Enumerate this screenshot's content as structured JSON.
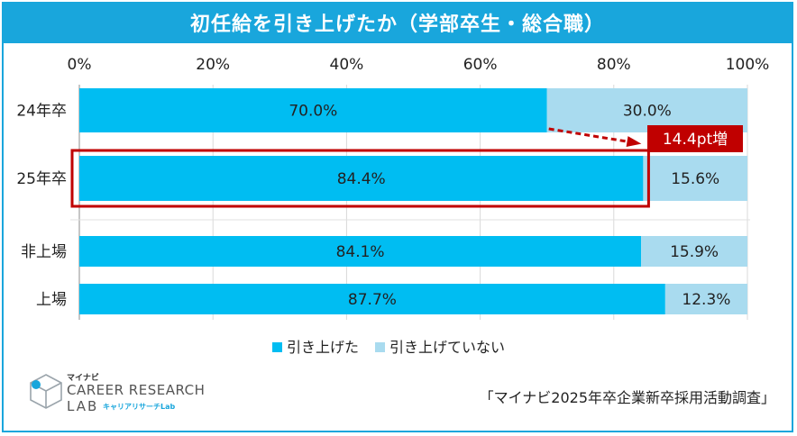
{
  "chart_data": {
    "type": "bar",
    "orientation": "horizontal",
    "stacked": true,
    "title": "初任給を引き上げたか（学部卒生・総合職）",
    "x_ticks": [
      "0%",
      "20%",
      "40%",
      "60%",
      "80%",
      "100%"
    ],
    "xlim": [
      0,
      100
    ],
    "categories": [
      "24年卒",
      "25年卒",
      "非上場",
      "上場"
    ],
    "series": [
      {
        "name": "引き上げた",
        "values": [
          70.0,
          84.4,
          84.1,
          87.7
        ],
        "labels": [
          "70.0%",
          "84.4%",
          "84.1%",
          "87.7%"
        ],
        "color": "#00bdf2"
      },
      {
        "name": "引き上げていない",
        "values": [
          30.0,
          15.6,
          15.9,
          12.3
        ],
        "labels": [
          "30.0%",
          "15.6%",
          "15.9%",
          "12.3%"
        ],
        "color": "#a9dbef"
      }
    ],
    "annotation": {
      "text": "14.4pt増",
      "from_category": "24年卒",
      "to_category": "25年卒",
      "color": "#c00000"
    },
    "highlight_category": "25年卒",
    "legend": [
      "引き上げた",
      "引き上げていない"
    ],
    "legend_position": "bottom"
  },
  "logo": {
    "kana_top": "マイナビ",
    "line1": "CAREER RESEARCH",
    "line2": "LAB",
    "kana_bottom": "キャリアリサーチLab"
  },
  "source": "「マイナビ2025年卒企業新卒採用活動調査」"
}
